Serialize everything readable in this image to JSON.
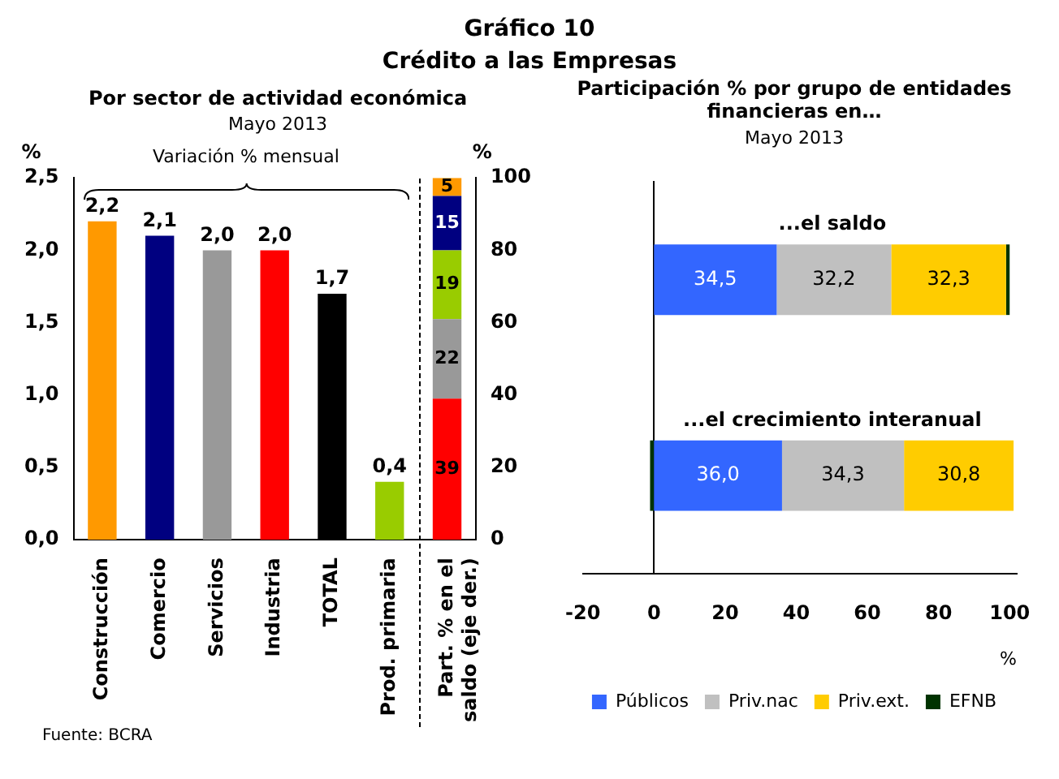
{
  "chart_data": [
    {
      "type": "bar",
      "title": "Por sector de actividad económica",
      "subtitle": "Mayo 2013",
      "ylabel": "%",
      "y2label": "%",
      "annotations": [
        "Gráfico 10",
        "Crédito a las Empresas",
        "Variación % mensual",
        "Fuente: BCRA"
      ],
      "categories": [
        "Construcción",
        "Comercio",
        "Servicios",
        "Industria",
        "TOTAL",
        "Prod. primaria",
        "Part. % en el saldo (eje der.)"
      ],
      "stacked": true,
      "series": [
        {
          "colors": [
            "#ff9900",
            "#000080",
            "#999999",
            "#ff0000",
            "#000000",
            "#99cc00",
            null
          ],
          "values": [
            2.2,
            2.1,
            2.0,
            2.0,
            1.7,
            0.4,
            null
          ],
          "value_labels": [
            "2,2",
            "2,1",
            "2,0",
            "2,0",
            "1,7",
            "0,4",
            null
          ]
        },
        {
          "axis": "y2",
          "color": "#ff0000",
          "values": [
            null,
            null,
            null,
            null,
            null,
            null,
            39
          ],
          "value_labels": [
            null,
            null,
            null,
            null,
            null,
            null,
            "39"
          ]
        },
        {
          "axis": "y2",
          "color": "#999999",
          "values": [
            null,
            null,
            null,
            null,
            null,
            null,
            22
          ],
          "value_labels": [
            null,
            null,
            null,
            null,
            null,
            null,
            "22"
          ]
        },
        {
          "axis": "y2",
          "color": "#99cc00",
          "values": [
            null,
            null,
            null,
            null,
            null,
            null,
            19
          ],
          "value_labels": [
            null,
            null,
            null,
            null,
            null,
            null,
            "19"
          ]
        },
        {
          "axis": "y2",
          "color": "#000080",
          "values": [
            null,
            null,
            null,
            null,
            null,
            null,
            15
          ],
          "value_labels": [
            null,
            null,
            null,
            null,
            null,
            null,
            "15"
          ]
        },
        {
          "axis": "y2",
          "color": "#ff9900",
          "values": [
            null,
            null,
            null,
            null,
            null,
            null,
            5
          ],
          "value_labels": [
            null,
            null,
            null,
            null,
            null,
            null,
            "5"
          ]
        }
      ],
      "ylim": [
        0,
        2.5
      ],
      "yticks": [
        {
          "value": 0,
          "label": "0,0"
        },
        {
          "value": 0.5,
          "label": "0,5"
        },
        {
          "value": 1,
          "label": "1,0"
        },
        {
          "value": 1.5,
          "label": "1,5"
        },
        {
          "value": 2,
          "label": "2,0"
        },
        {
          "value": 2.5,
          "label": "2,5"
        }
      ],
      "y2lim": [
        0,
        100
      ],
      "y2ticks": [
        0,
        20,
        40,
        60,
        80,
        100
      ]
    },
    {
      "type": "bar",
      "orientation": "horizontal",
      "stacked": true,
      "title": "Participación % por grupo de entidades financieras en…",
      "subtitle": "Mayo 2013",
      "xlabel": "%",
      "categories": [
        "...el saldo",
        "...el crecimiento interanual"
      ],
      "series": [
        {
          "name": "Públicos",
          "color": "#3366ff",
          "values": [
            34.5,
            36.0
          ],
          "value_labels": [
            "34,5",
            "36,0"
          ]
        },
        {
          "name": "Priv.nac",
          "color": "#c0c0c0",
          "values": [
            32.2,
            34.3
          ],
          "value_labels": [
            "32,2",
            "34,3"
          ]
        },
        {
          "name": "Priv.ext.",
          "color": "#ffcc00",
          "values": [
            32.3,
            30.8
          ],
          "value_labels": [
            "32,3",
            "30,8"
          ]
        },
        {
          "name": "EFNB",
          "color": "#003300",
          "values": [
            1.0,
            -1.1
          ],
          "value_labels": [
            null,
            null
          ]
        }
      ],
      "xlim": [
        -20,
        102
      ],
      "xticks": [
        -20,
        0,
        20,
        40,
        60,
        80,
        100
      ],
      "legend": "bottom"
    }
  ]
}
